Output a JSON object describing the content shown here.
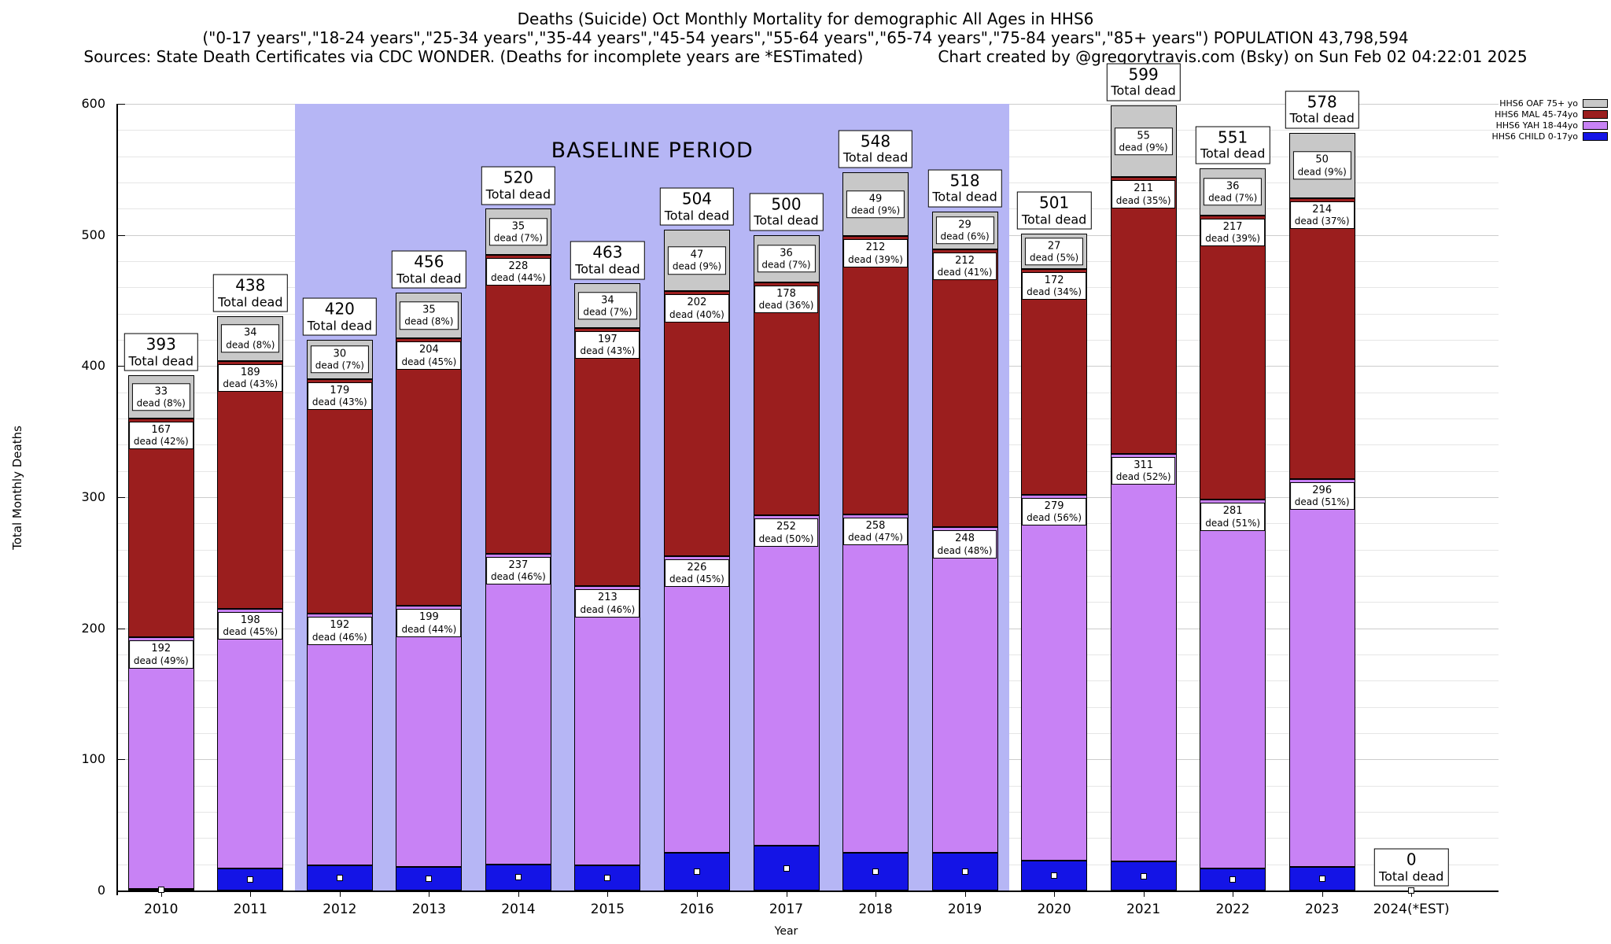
{
  "title": {
    "line1": "Deaths (Suicide) Oct Monthly Mortality for demographic All Ages in HHS6",
    "line2": "(\"0-17 years\",\"18-24 years\",\"25-34 years\",\"35-44 years\",\"45-54 years\",\"55-64 years\",\"65-74 years\",\"75-84 years\",\"85+ years\") POPULATION 43,798,594",
    "sources": "Sources: State Death Certificates via CDC WONDER. (Deaths for incomplete years are *ESTimated)",
    "credit": "Chart created by @gregorytravis.com (Bsky) on Sun Feb 02 04:22:01 2025"
  },
  "axes": {
    "y_label": "Total Monthly Deaths",
    "x_label": "Year",
    "y_ticks": [
      0,
      100,
      200,
      300,
      400,
      500,
      600
    ]
  },
  "legend": [
    {
      "key": "oaf",
      "label": "HHS6 OAF 75+ yo",
      "color": "#c8c8c8"
    },
    {
      "key": "mal",
      "label": "HHS6 MAL 45-74yo",
      "color": "#9b1e1e"
    },
    {
      "key": "yah",
      "label": "HHS6 YAH 18-44yo",
      "color": "#c882f5"
    },
    {
      "key": "child",
      "label": "HHS6 CHILD 0-17yo",
      "color": "#1414e6"
    }
  ],
  "baseline": {
    "label": "BASELINE PERIOD",
    "start_index": 2,
    "end_index": 9,
    "color": "#b6b6f5"
  },
  "chart_data": {
    "type": "bar",
    "stacked": true,
    "title": "Deaths (Suicide) Oct Monthly Mortality for demographic All Ages in HHS6",
    "xlabel": "Year",
    "ylabel": "Total Monthly Deaths",
    "ylim": [
      0,
      600
    ],
    "grid": true,
    "legend_position": "top-right",
    "categories": [
      "2010",
      "2011",
      "2012",
      "2013",
      "2014",
      "2015",
      "2016",
      "2017",
      "2018",
      "2019",
      "2020",
      "2021",
      "2022",
      "2023",
      "2024(*EST)"
    ],
    "totals": [
      393,
      438,
      420,
      456,
      520,
      463,
      504,
      500,
      548,
      518,
      501,
      599,
      551,
      578,
      0
    ],
    "total_label_line2": "Total dead",
    "segment_label_line2_format": "dead ({pct}%)",
    "series": [
      {
        "key": "child",
        "name": "HHS6 CHILD 0-17yo",
        "color": "#1414e6",
        "values": [
          1,
          17,
          19,
          18,
          20,
          19,
          29,
          34,
          29,
          29,
          23,
          22,
          17,
          18,
          0
        ],
        "pcts": null
      },
      {
        "key": "yah",
        "name": "HHS6 YAH 18-44yo",
        "color": "#c882f5",
        "values": [
          192,
          198,
          192,
          199,
          237,
          213,
          226,
          252,
          258,
          248,
          279,
          311,
          281,
          296,
          0
        ],
        "pcts": [
          49,
          45,
          46,
          44,
          46,
          46,
          45,
          50,
          47,
          48,
          56,
          52,
          51,
          51,
          null
        ]
      },
      {
        "key": "mal",
        "name": "HHS6 MAL 45-74yo",
        "color": "#9b1e1e",
        "values": [
          167,
          189,
          179,
          204,
          228,
          197,
          202,
          178,
          212,
          212,
          172,
          211,
          217,
          214,
          0
        ],
        "pcts": [
          42,
          43,
          43,
          45,
          44,
          43,
          40,
          36,
          39,
          41,
          34,
          35,
          39,
          37,
          null
        ]
      },
      {
        "key": "oaf",
        "name": "HHS6 OAF 75+ yo",
        "color": "#c8c8c8",
        "values": [
          33,
          34,
          30,
          35,
          35,
          34,
          47,
          36,
          49,
          29,
          27,
          55,
          36,
          50,
          0
        ],
        "pcts": [
          8,
          8,
          7,
          8,
          7,
          7,
          9,
          7,
          9,
          6,
          5,
          9,
          7,
          9,
          null
        ]
      }
    ]
  }
}
